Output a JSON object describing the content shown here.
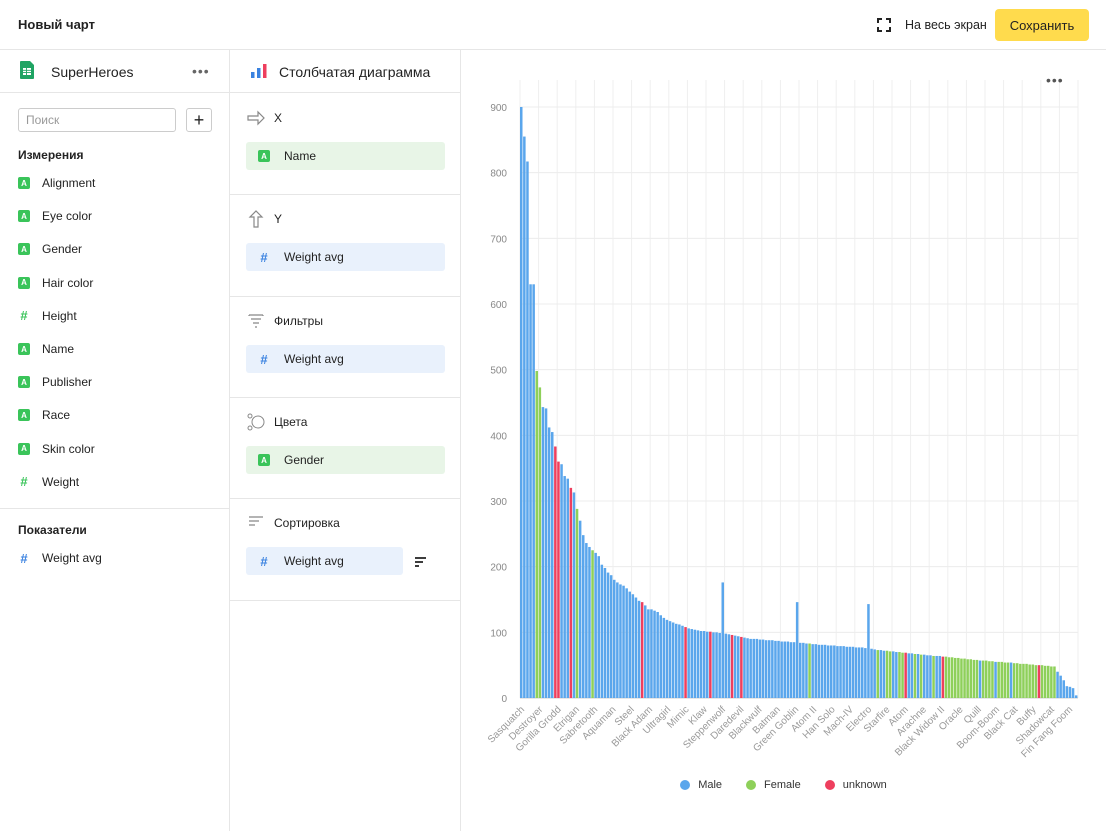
{
  "header": {
    "title": "Новый чарт",
    "fullscreen_label": "На весь экран",
    "save_label": "Сохранить"
  },
  "dataset": {
    "name": "SuperHeroes",
    "more": "•••",
    "search_placeholder": "Поиск",
    "add_label": "+",
    "dimensions_title": "Измерения",
    "dimensions": [
      {
        "label": "Alignment",
        "type": "A"
      },
      {
        "label": "Eye color",
        "type": "A"
      },
      {
        "label": "Gender",
        "type": "A"
      },
      {
        "label": "Hair color",
        "type": "A"
      },
      {
        "label": "Height",
        "type": "#"
      },
      {
        "label": "Name",
        "type": "A"
      },
      {
        "label": "Publisher",
        "type": "A"
      },
      {
        "label": "Race",
        "type": "A"
      },
      {
        "label": "Skin color",
        "type": "A"
      },
      {
        "label": "Weight",
        "type": "#"
      }
    ],
    "measures_title": "Показатели",
    "measures": [
      {
        "label": "Weight avg",
        "type": "#"
      }
    ]
  },
  "visualization": {
    "name": "Столбчатая диаграмма",
    "slots": [
      {
        "label": "X",
        "chip": "Name",
        "chip_type": "A"
      },
      {
        "label": "Y",
        "chip": "Weight avg",
        "chip_type": "#"
      },
      {
        "label": "Фильтры",
        "chip": "Weight avg",
        "chip_type": "#"
      },
      {
        "label": "Цвета",
        "chip": "Gender",
        "chip_type": "A"
      },
      {
        "label": "Сортировка",
        "chip": "Weight avg",
        "chip_type": "#"
      }
    ]
  },
  "chart_menu": "•••",
  "colors": {
    "accent": "#ffdb4d",
    "dimension": "#3ac45a",
    "measure": "#3a82e0",
    "male": "#5aa6ec",
    "female": "#8ed05a",
    "unknown": "#ee3f5e"
  },
  "chart_data": {
    "type": "bar",
    "y_ticks": [
      0,
      100,
      200,
      300,
      400,
      500,
      600,
      700,
      800,
      900
    ],
    "ylim": [
      0,
      900
    ],
    "grid": true,
    "legend_position": "bottom",
    "x_tick_labels": [
      "Sasquatch",
      "Destroyer",
      "Gorilla Grodd",
      "Etrigan",
      "Sabretooth",
      "Aquaman",
      "Steel",
      "Black Adam",
      "Ultragirl",
      "Mimic",
      "Klaw",
      "Steppenwolf",
      "Daredevil",
      "Blackwulf",
      "Batman",
      "Green Goblin",
      "Atom II",
      "Han Solo",
      "Mach-IV",
      "Electro",
      "Starfire",
      "Atom",
      "Arachne",
      "Black Widow II",
      "Oracle",
      "Quill",
      "Boom-Boom",
      "Black Cat",
      "Buffy",
      "Shadowcat",
      "Fin Fang Foom"
    ],
    "series": [
      {
        "name": "Male",
        "color": "#5aa6ec"
      },
      {
        "name": "Female",
        "color": "#8ed05a"
      },
      {
        "name": "unknown",
        "color": "#ee3f5e"
      }
    ],
    "bars": [
      {
        "v": 900,
        "s": 0
      },
      {
        "v": 855,
        "s": 0
      },
      {
        "v": 817,
        "s": 0
      },
      {
        "v": 630,
        "s": 0
      },
      {
        "v": 630,
        "s": 0
      },
      {
        "v": 498,
        "s": 1
      },
      {
        "v": 473,
        "s": 1
      },
      {
        "v": 443,
        "s": 0
      },
      {
        "v": 441,
        "s": 0
      },
      {
        "v": 412,
        "s": 0
      },
      {
        "v": 405,
        "s": 0
      },
      {
        "v": 383,
        "s": 2
      },
      {
        "v": 360,
        "s": 2
      },
      {
        "v": 356,
        "s": 0
      },
      {
        "v": 338,
        "s": 0
      },
      {
        "v": 334,
        "s": 0
      },
      {
        "v": 320,
        "s": 2
      },
      {
        "v": 313,
        "s": 0
      },
      {
        "v": 288,
        "s": 1
      },
      {
        "v": 270,
        "s": 0
      },
      {
        "v": 248,
        "s": 0
      },
      {
        "v": 236,
        "s": 0
      },
      {
        "v": 230,
        "s": 0
      },
      {
        "v": 225,
        "s": 1
      },
      {
        "v": 221,
        "s": 0
      },
      {
        "v": 216,
        "s": 0
      },
      {
        "v": 203,
        "s": 0
      },
      {
        "v": 198,
        "s": 0
      },
      {
        "v": 191,
        "s": 0
      },
      {
        "v": 187,
        "s": 0
      },
      {
        "v": 180,
        "s": 0
      },
      {
        "v": 176,
        "s": 0
      },
      {
        "v": 173,
        "s": 0
      },
      {
        "v": 171,
        "s": 0
      },
      {
        "v": 167,
        "s": 0
      },
      {
        "v": 162,
        "s": 0
      },
      {
        "v": 158,
        "s": 0
      },
      {
        "v": 153,
        "s": 0
      },
      {
        "v": 148,
        "s": 0
      },
      {
        "v": 146,
        "s": 2
      },
      {
        "v": 141,
        "s": 0
      },
      {
        "v": 135,
        "s": 0
      },
      {
        "v": 135,
        "s": 0
      },
      {
        "v": 133,
        "s": 0
      },
      {
        "v": 131,
        "s": 0
      },
      {
        "v": 126,
        "s": 0
      },
      {
        "v": 122,
        "s": 0
      },
      {
        "v": 119,
        "s": 0
      },
      {
        "v": 117,
        "s": 0
      },
      {
        "v": 115,
        "s": 0
      },
      {
        "v": 113,
        "s": 0
      },
      {
        "v": 112,
        "s": 0
      },
      {
        "v": 110,
        "s": 0
      },
      {
        "v": 108,
        "s": 2
      },
      {
        "v": 106,
        "s": 0
      },
      {
        "v": 105,
        "s": 0
      },
      {
        "v": 104,
        "s": 0
      },
      {
        "v": 103,
        "s": 0
      },
      {
        "v": 102,
        "s": 0
      },
      {
        "v": 102,
        "s": 0
      },
      {
        "v": 101,
        "s": 0
      },
      {
        "v": 101,
        "s": 2
      },
      {
        "v": 100,
        "s": 0
      },
      {
        "v": 100,
        "s": 0
      },
      {
        "v": 99,
        "s": 0
      },
      {
        "v": 176,
        "s": 0
      },
      {
        "v": 98,
        "s": 0
      },
      {
        "v": 97,
        "s": 0
      },
      {
        "v": 96,
        "s": 2
      },
      {
        "v": 95,
        "s": 0
      },
      {
        "v": 94,
        "s": 0
      },
      {
        "v": 93,
        "s": 2
      },
      {
        "v": 92,
        "s": 0
      },
      {
        "v": 91,
        "s": 0
      },
      {
        "v": 90,
        "s": 0
      },
      {
        "v": 90,
        "s": 0
      },
      {
        "v": 90,
        "s": 0
      },
      {
        "v": 89,
        "s": 0
      },
      {
        "v": 89,
        "s": 0
      },
      {
        "v": 88,
        "s": 0
      },
      {
        "v": 88,
        "s": 0
      },
      {
        "v": 88,
        "s": 0
      },
      {
        "v": 87,
        "s": 0
      },
      {
        "v": 87,
        "s": 0
      },
      {
        "v": 86,
        "s": 0
      },
      {
        "v": 86,
        "s": 0
      },
      {
        "v": 86,
        "s": 0
      },
      {
        "v": 85,
        "s": 0
      },
      {
        "v": 85,
        "s": 0
      },
      {
        "v": 146,
        "s": 0
      },
      {
        "v": 84,
        "s": 0
      },
      {
        "v": 84,
        "s": 0
      },
      {
        "v": 83,
        "s": 0
      },
      {
        "v": 83,
        "s": 1
      },
      {
        "v": 82,
        "s": 0
      },
      {
        "v": 82,
        "s": 0
      },
      {
        "v": 81,
        "s": 0
      },
      {
        "v": 81,
        "s": 0
      },
      {
        "v": 81,
        "s": 0
      },
      {
        "v": 80,
        "s": 0
      },
      {
        "v": 80,
        "s": 0
      },
      {
        "v": 80,
        "s": 0
      },
      {
        "v": 79,
        "s": 0
      },
      {
        "v": 79,
        "s": 0
      },
      {
        "v": 79,
        "s": 0
      },
      {
        "v": 78,
        "s": 0
      },
      {
        "v": 78,
        "s": 0
      },
      {
        "v": 78,
        "s": 0
      },
      {
        "v": 77,
        "s": 0
      },
      {
        "v": 77,
        "s": 0
      },
      {
        "v": 77,
        "s": 0
      },
      {
        "v": 76,
        "s": 0
      },
      {
        "v": 143,
        "s": 0
      },
      {
        "v": 75,
        "s": 0
      },
      {
        "v": 74,
        "s": 0
      },
      {
        "v": 73,
        "s": 1
      },
      {
        "v": 73,
        "s": 0
      },
      {
        "v": 72,
        "s": 0
      },
      {
        "v": 72,
        "s": 1
      },
      {
        "v": 71,
        "s": 1
      },
      {
        "v": 71,
        "s": 0
      },
      {
        "v": 70,
        "s": 0
      },
      {
        "v": 70,
        "s": 1
      },
      {
        "v": 69,
        "s": 1
      },
      {
        "v": 69,
        "s": 2
      },
      {
        "v": 68,
        "s": 0
      },
      {
        "v": 68,
        "s": 0
      },
      {
        "v": 67,
        "s": 1
      },
      {
        "v": 67,
        "s": 0
      },
      {
        "v": 66,
        "s": 1
      },
      {
        "v": 66,
        "s": 0
      },
      {
        "v": 65,
        "s": 0
      },
      {
        "v": 65,
        "s": 0
      },
      {
        "v": 64,
        "s": 1
      },
      {
        "v": 64,
        "s": 0
      },
      {
        "v": 64,
        "s": 0
      },
      {
        "v": 63,
        "s": 2
      },
      {
        "v": 63,
        "s": 1
      },
      {
        "v": 62,
        "s": 1
      },
      {
        "v": 62,
        "s": 1
      },
      {
        "v": 61,
        "s": 1
      },
      {
        "v": 61,
        "s": 1
      },
      {
        "v": 60,
        "s": 1
      },
      {
        "v": 60,
        "s": 1
      },
      {
        "v": 59,
        "s": 1
      },
      {
        "v": 59,
        "s": 1
      },
      {
        "v": 58,
        "s": 1
      },
      {
        "v": 58,
        "s": 1
      },
      {
        "v": 57,
        "s": 0
      },
      {
        "v": 57,
        "s": 1
      },
      {
        "v": 57,
        "s": 1
      },
      {
        "v": 56,
        "s": 1
      },
      {
        "v": 56,
        "s": 1
      },
      {
        "v": 55,
        "s": 0
      },
      {
        "v": 55,
        "s": 1
      },
      {
        "v": 55,
        "s": 1
      },
      {
        "v": 54,
        "s": 1
      },
      {
        "v": 54,
        "s": 1
      },
      {
        "v": 54,
        "s": 0
      },
      {
        "v": 53,
        "s": 1
      },
      {
        "v": 53,
        "s": 1
      },
      {
        "v": 52,
        "s": 1
      },
      {
        "v": 52,
        "s": 1
      },
      {
        "v": 52,
        "s": 1
      },
      {
        "v": 51,
        "s": 1
      },
      {
        "v": 51,
        "s": 1
      },
      {
        "v": 50,
        "s": 1
      },
      {
        "v": 50,
        "s": 2
      },
      {
        "v": 50,
        "s": 1
      },
      {
        "v": 49,
        "s": 1
      },
      {
        "v": 49,
        "s": 1
      },
      {
        "v": 48,
        "s": 1
      },
      {
        "v": 48,
        "s": 1
      },
      {
        "v": 40,
        "s": 0
      },
      {
        "v": 34,
        "s": 0
      },
      {
        "v": 27,
        "s": 0
      },
      {
        "v": 18,
        "s": 0
      },
      {
        "v": 17,
        "s": 0
      },
      {
        "v": 15,
        "s": 0
      },
      {
        "v": 4,
        "s": 0
      }
    ]
  }
}
